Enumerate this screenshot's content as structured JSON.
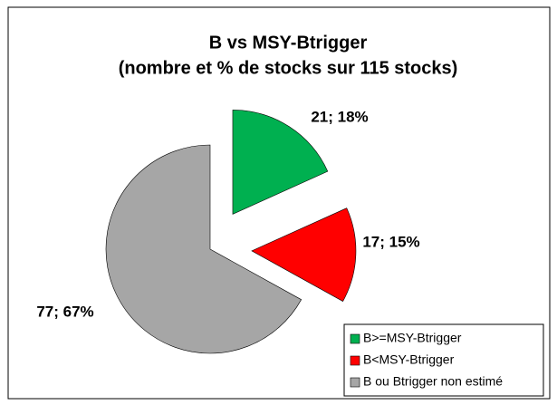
{
  "chart_data": {
    "type": "pie",
    "title": [
      "B vs MSY-Btrigger",
      "(nombre et % de stocks sur 115 stocks)"
    ],
    "categories": [
      "B>=MSY-Btrigger",
      "B<MSY-Btrigger",
      "B ou Btrigger non estimé"
    ],
    "values": [
      21,
      17,
      77
    ],
    "value_labels": [
      "21; 18%",
      "17; 15%",
      "77; 67%"
    ],
    "colors": [
      "#00b050",
      "#ff0000",
      "#a6a6a6"
    ],
    "legend": "bottom-right"
  }
}
